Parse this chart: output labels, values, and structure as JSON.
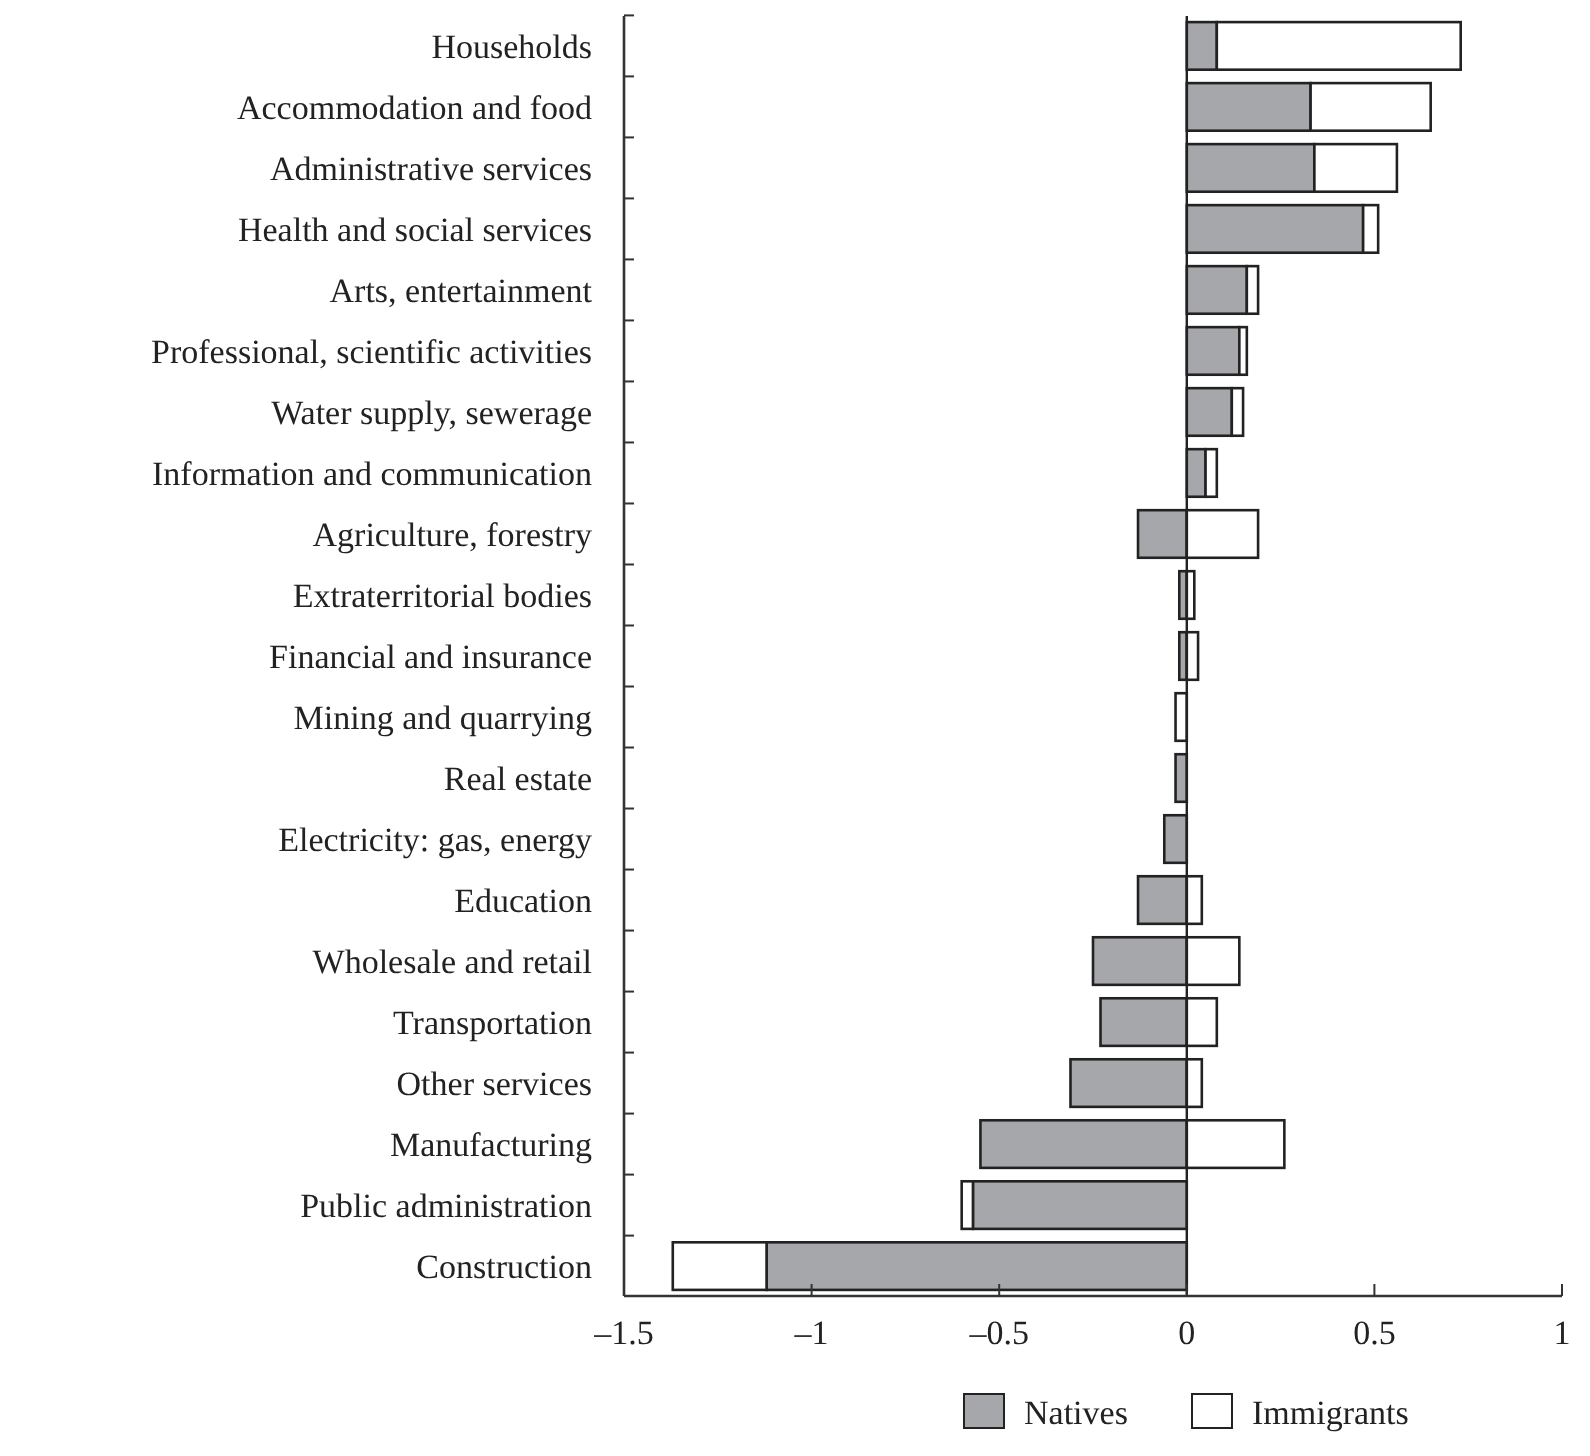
{
  "chart_data": {
    "type": "bar",
    "orientation": "horizontal",
    "stacked": true,
    "categories": [
      "Households",
      "Accommodation and food",
      "Administrative services",
      "Health and social services",
      "Arts, entertainment",
      "Professional, scientific activities",
      "Water supply, sewerage",
      "Information and communication",
      "Agriculture, forestry",
      "Extraterritorial bodies",
      "Financial and insurance",
      "Mining and quarrying",
      "Real estate",
      "Electricity: gas, energy",
      "Education",
      "Wholesale and retail",
      "Transportation",
      "Other services",
      "Manufacturing",
      "Public administration",
      "Construction"
    ],
    "series": [
      {
        "name": "Natives",
        "color": "#a6a7aa",
        "values": [
          0.08,
          0.33,
          0.34,
          0.47,
          0.16,
          0.14,
          0.12,
          0.05,
          -0.13,
          -0.02,
          -0.02,
          null,
          -0.03,
          -0.06,
          -0.13,
          -0.25,
          -0.23,
          -0.31,
          -0.55,
          -0.57,
          -1.12
        ]
      },
      {
        "name": "Immigrants",
        "color": "#ffffff",
        "values": [
          0.65,
          0.32,
          0.22,
          0.04,
          0.03,
          0.02,
          0.03,
          0.03,
          0.19,
          0.02,
          0.03,
          -0.03,
          0,
          0,
          0.04,
          0.14,
          0.08,
          0.04,
          0.26,
          -0.03,
          -0.25
        ]
      }
    ],
    "xlim": [
      -1.5,
      1
    ],
    "xticks": [
      {
        "value": -1.5,
        "label": "–1.5"
      },
      {
        "value": -1,
        "label": "–1"
      },
      {
        "value": -0.5,
        "label": "–0.5"
      },
      0,
      0.5,
      1
    ],
    "ref_lines": [
      {
        "axis": "x",
        "value": 0,
        "color": "#222222"
      }
    ],
    "legend": "bottom"
  }
}
